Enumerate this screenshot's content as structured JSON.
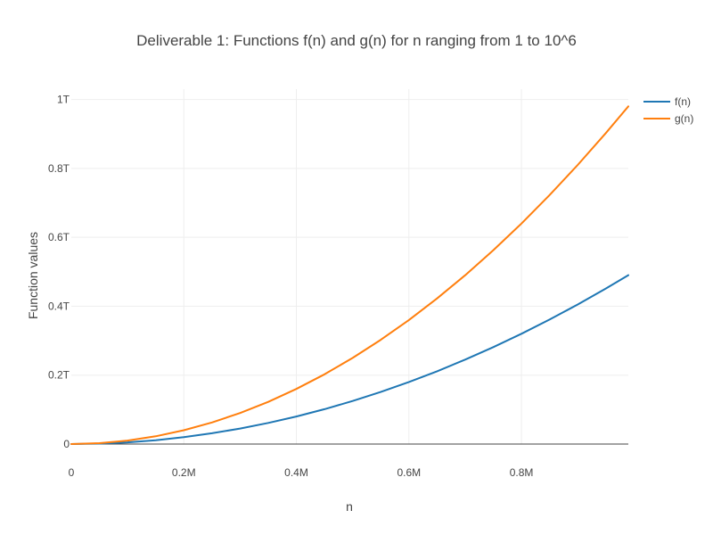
{
  "chart_data": {
    "type": "line",
    "title": "Deliverable 1: Functions f(n) and g(n) for n ranging from 1 to 10^6",
    "xlabel": "n",
    "ylabel": "Function values",
    "xlim": [
      0,
      990000
    ],
    "ylim": [
      0,
      1030000000000
    ],
    "x_ticks": [
      {
        "value": 0,
        "label": "0"
      },
      {
        "value": 200000,
        "label": "0.2M"
      },
      {
        "value": 400000,
        "label": "0.4M"
      },
      {
        "value": 600000,
        "label": "0.6M"
      },
      {
        "value": 800000,
        "label": "0.8M"
      }
    ],
    "y_ticks": [
      {
        "value": 0,
        "label": "0"
      },
      {
        "value": 200000000000,
        "label": "0.2T"
      },
      {
        "value": 400000000000,
        "label": "0.4T"
      },
      {
        "value": 600000000000,
        "label": "0.6T"
      },
      {
        "value": 800000000000,
        "label": "0.8T"
      },
      {
        "value": 1000000000000,
        "label": "1T"
      }
    ],
    "grid": true,
    "legend_position": "top-right",
    "x": [
      1,
      50000,
      100000,
      150000,
      200000,
      250000,
      300000,
      350000,
      400000,
      450000,
      500000,
      550000,
      600000,
      650000,
      700000,
      750000,
      800000,
      850000,
      900000,
      950000,
      990000
    ],
    "series": [
      {
        "name": "f(n)",
        "color": "#1f77b4",
        "values": [
          0,
          1250000000,
          5000000000,
          11250000000,
          20000000000,
          31250000000,
          45000000000,
          61250000000,
          80000000000,
          101250000000,
          125000000000,
          151250000000,
          180000000000,
          211250000000,
          245000000000,
          281250000000,
          320000000000,
          361250000000,
          405000000000,
          451250000000,
          490050000000
        ]
      },
      {
        "name": "g(n)",
        "color": "#ff7f0e",
        "values": [
          0,
          2500000000,
          10000000000,
          22500000000,
          40000000000,
          62500000000,
          90000000000,
          122500000000,
          160000000000,
          202500000000,
          250000000000,
          302500000000,
          360000000000,
          422500000000,
          490000000000,
          562500000000,
          640000000000,
          722500000000,
          810000000000,
          902500000000,
          980100000000
        ]
      }
    ]
  }
}
